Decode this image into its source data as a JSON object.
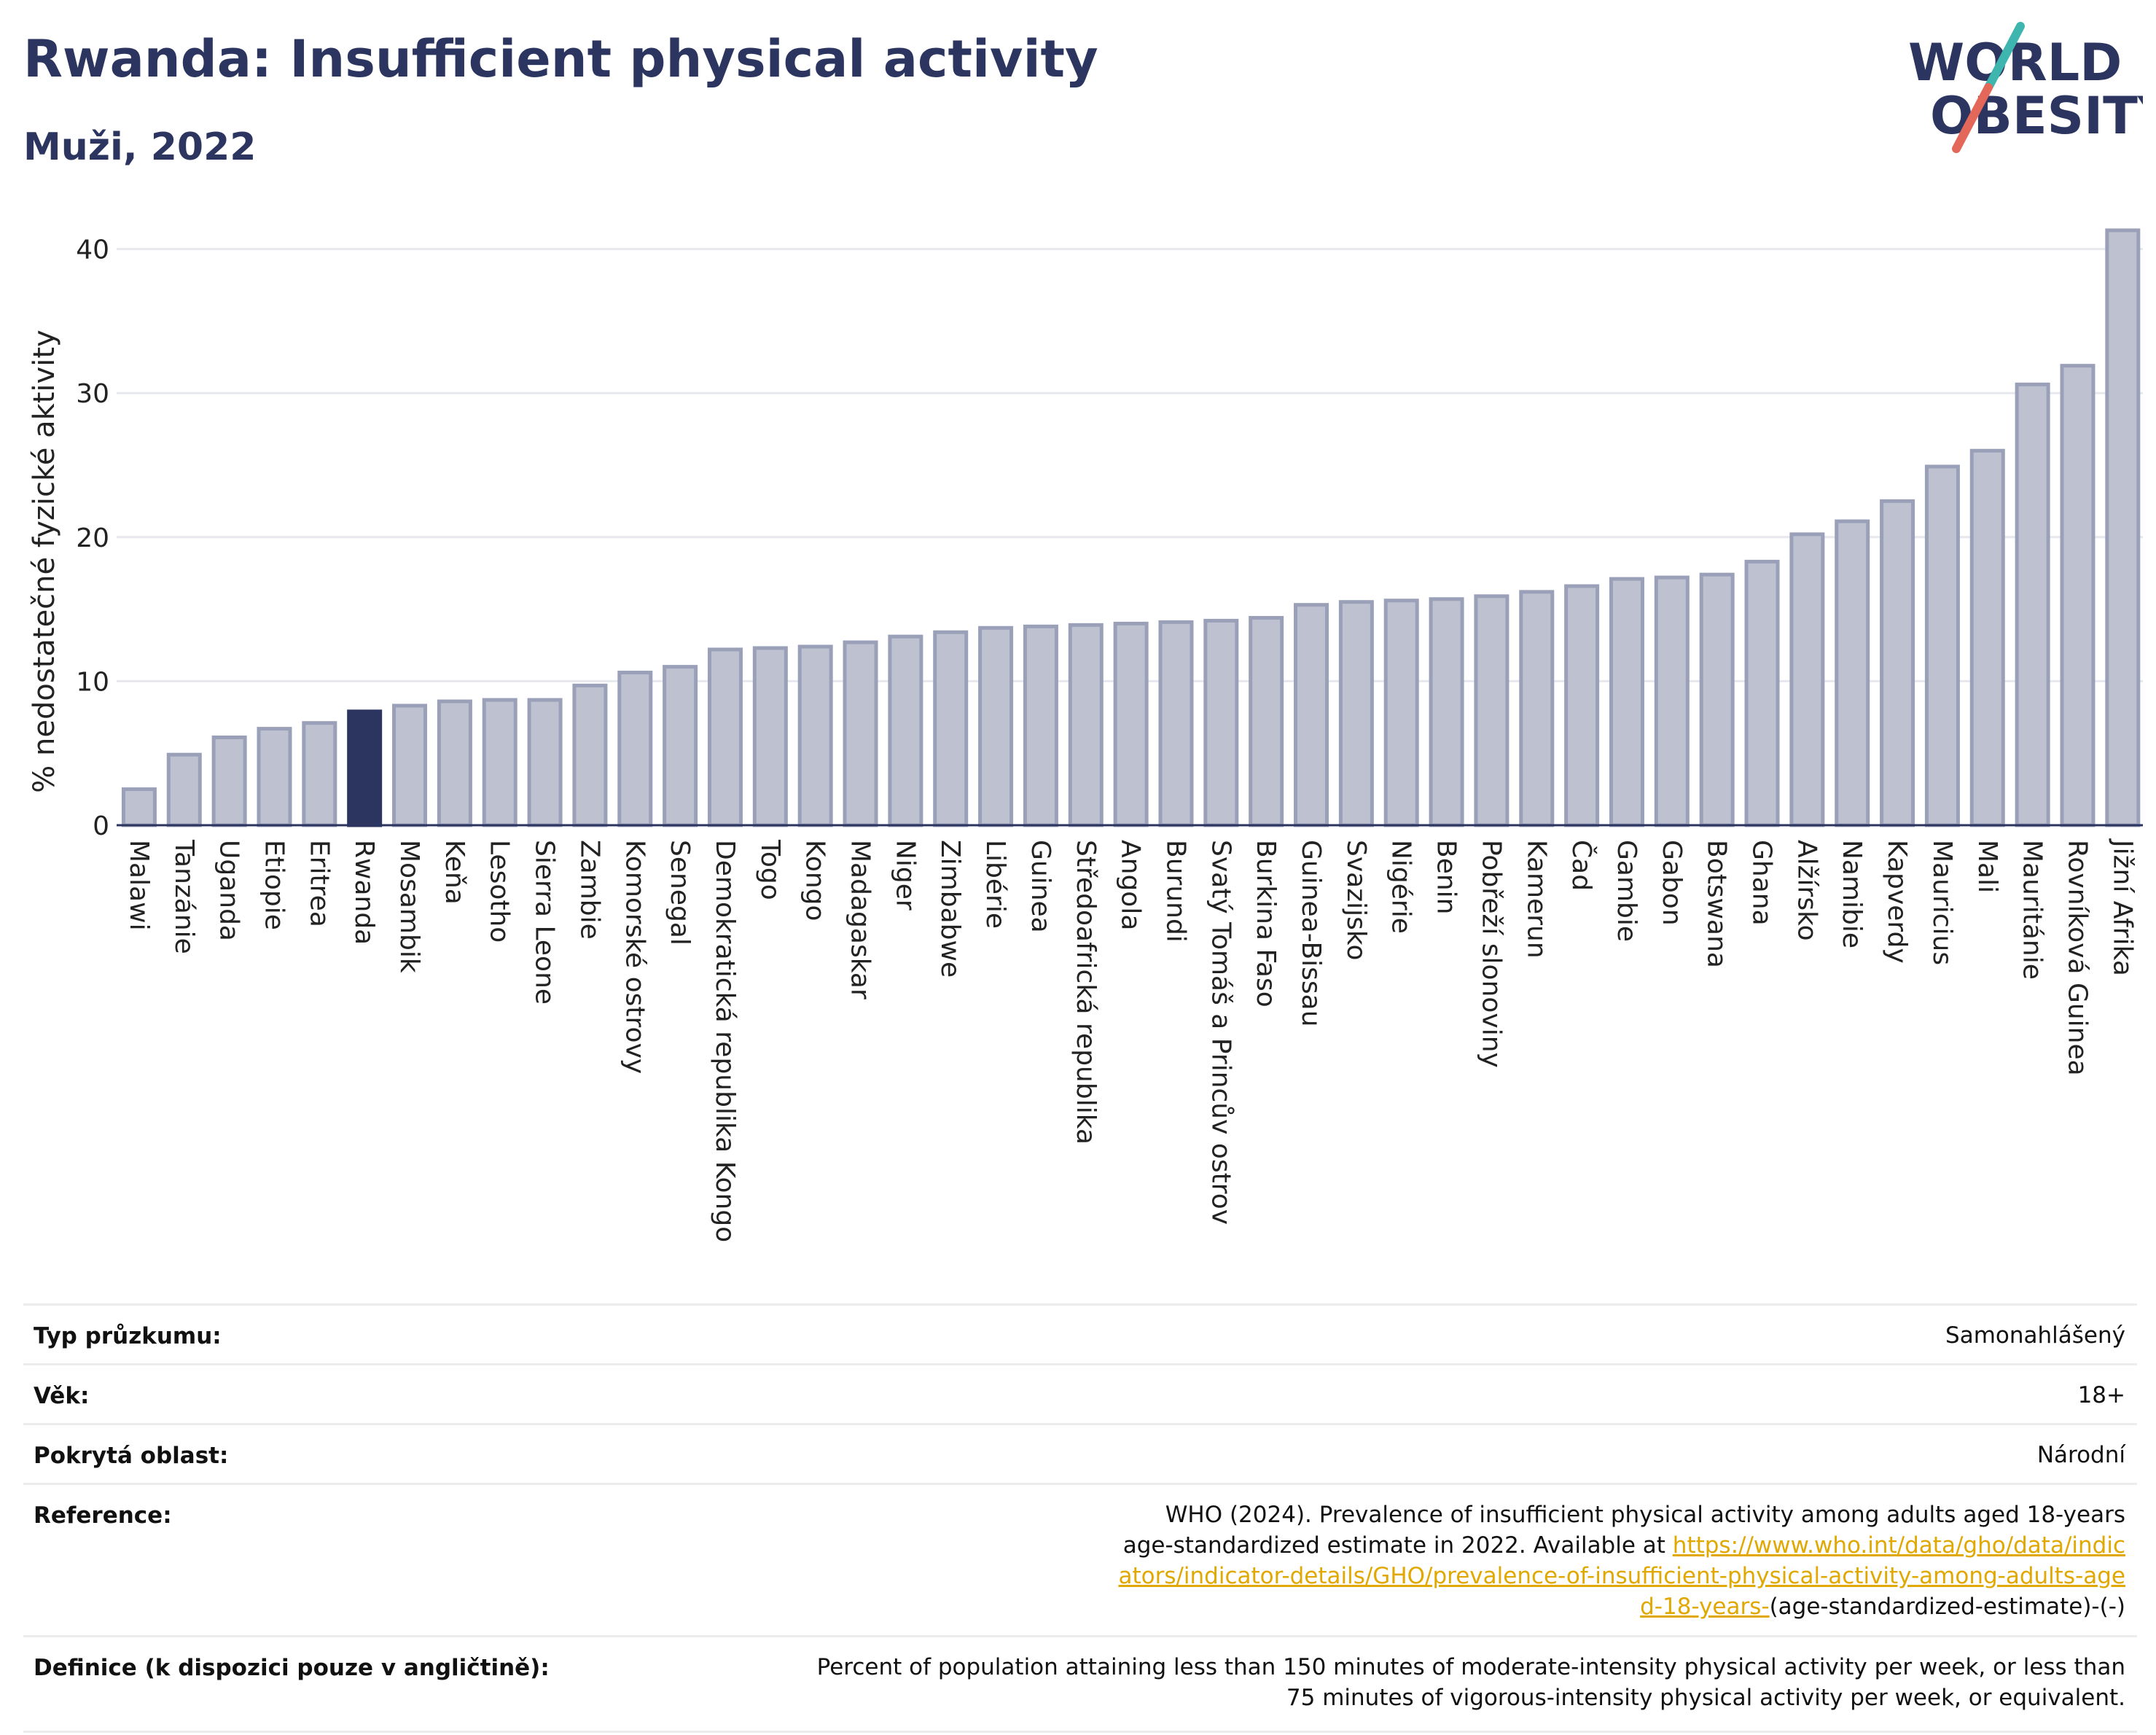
{
  "header": {
    "title": "Rwanda: Insufficient physical activity",
    "subtitle": "Muži, 2022",
    "logo_line1": "WORLD",
    "logo_line2": "OBESITY"
  },
  "colors": {
    "title": "#2c3560",
    "bar": "#bec1d0",
    "bar_outline": "#9aa0b8",
    "highlight": "#2c3560",
    "link": "#e0a800",
    "logo_teal": "#3fb5b0",
    "logo_red": "#e4685a"
  },
  "chart_data": {
    "type": "bar",
    "ylabel": "% nedostatečné fyzické aktivity",
    "ylim": [
      0,
      42
    ],
    "yticks": [
      0,
      10,
      20,
      30,
      40
    ],
    "grid": true,
    "highlight": "Rwanda",
    "categories": [
      "Malawi",
      "Tanzánie",
      "Uganda",
      "Etiopie",
      "Eritrea",
      "Rwanda",
      "Mosambik",
      "Keňa",
      "Lesotho",
      "Sierra Leone",
      "Zambie",
      "Komorské ostrovy",
      "Senegal",
      "Demokratická republika Kongo",
      "Togo",
      "Kongo",
      "Madagaskar",
      "Niger",
      "Zimbabwe",
      "Libérie",
      "Guinea",
      "Středoafrická republika",
      "Angola",
      "Burundi",
      "Svatý Tomáš a Princův ostrov",
      "Burkina Faso",
      "Guinea-Bissau",
      "Svazijsko",
      "Nigérie",
      "Benin",
      "Pobřeží slonoviny",
      "Kamerun",
      "Čad",
      "Gambie",
      "Gabon",
      "Botswana",
      "Ghana",
      "Alžírsko",
      "Namibie",
      "Kapverdy",
      "Mauricius",
      "Mali",
      "Mauritánie",
      "Rovníková Guinea",
      "Jižní Afrika"
    ],
    "values": [
      2.5,
      4.9,
      6.1,
      6.7,
      7.1,
      7.9,
      8.3,
      8.6,
      8.7,
      8.7,
      9.7,
      10.6,
      11.0,
      12.2,
      12.3,
      12.4,
      12.7,
      13.1,
      13.4,
      13.7,
      13.8,
      13.9,
      14.0,
      14.1,
      14.2,
      14.4,
      15.3,
      15.5,
      15.6,
      15.7,
      15.9,
      16.2,
      16.6,
      17.1,
      17.2,
      17.4,
      18.3,
      20.2,
      21.1,
      22.5,
      24.9,
      26.0,
      30.6,
      31.9,
      41.3
    ]
  },
  "info_table": {
    "survey_type": {
      "label": "Typ průzkumu:",
      "value": "Samonahlášený"
    },
    "age": {
      "label": "Věk:",
      "value": "18+"
    },
    "coverage": {
      "label": "Pokrytá oblast:",
      "value": "Národní"
    },
    "reference": {
      "label": "Reference:",
      "text": "WHO (2024). Prevalence of insufficient physical activity among adults aged 18-years age-standardized estimate in 2022. Available at",
      "link": "https://www.who.int/data/gho/data/indicators/indicator-details/GHO/prevalence-of-insufficient-physical-activity-among-adults-aged-18-years-",
      "suffix": "(age-standardized-estimate)-(-)"
    },
    "definition": {
      "label": "Definice (k dispozici pouze v angličtině):",
      "value": "Percent of population attaining less than 150 minutes of moderate-intensity physical activity per week, or less than 75 minutes of vigorous-intensity physical activity per week, or equivalent."
    }
  }
}
